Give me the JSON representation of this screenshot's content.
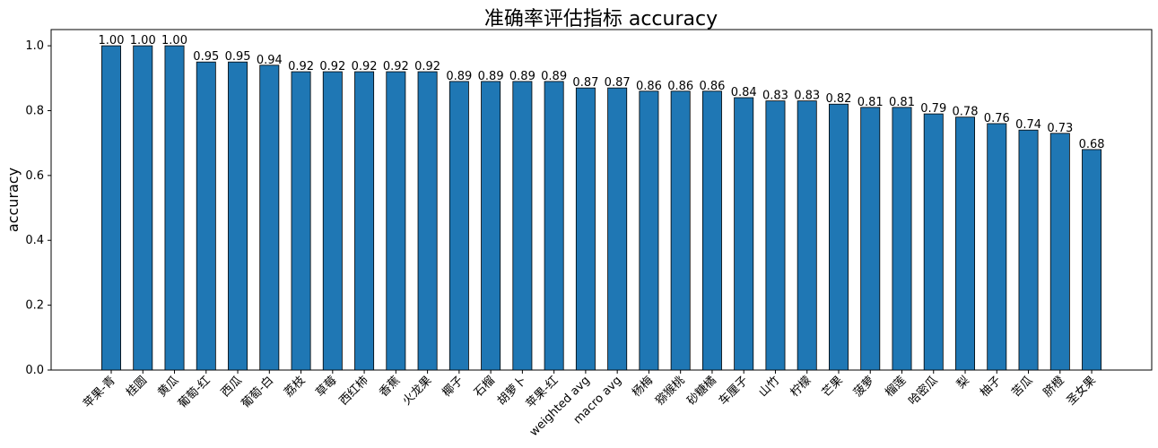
{
  "chart_data": {
    "type": "bar",
    "title": "准确率评估指标 accuracy",
    "y_label": "accuracy",
    "categories": [
      "苹果-青",
      "桂圆",
      "黄瓜",
      "葡萄-红",
      "西瓜",
      "葡萄-白",
      "荔枝",
      "草莓",
      "西红柿",
      "香蕉",
      "火龙果",
      "椰子",
      "石榴",
      "胡萝卜",
      "苹果-红",
      "weighted avg",
      "macro avg",
      "杨梅",
      "猕猴桃",
      "砂糖橘",
      "车厘子",
      "山竹",
      "柠檬",
      "芒果",
      "菠萝",
      "榴莲",
      "哈密瓜",
      "梨",
      "柚子",
      "苦瓜",
      "脐橙",
      "圣女果"
    ],
    "values": [
      1,
      1,
      1,
      0.95,
      0.95,
      0.94,
      0.92,
      0.92,
      0.92,
      0.92,
      0.92,
      0.89,
      0.89,
      0.89,
      0.89,
      0.87,
      0.87,
      0.86,
      0.86,
      0.86,
      0.84,
      0.83,
      0.83,
      0.82,
      0.81,
      0.81,
      0.79,
      0.78,
      0.76,
      0.74,
      0.73,
      0.68
    ],
    "value_labels": [
      "1.00",
      "1.00",
      "1.00",
      "0.95",
      "0.95",
      "0.94",
      "0.92",
      "0.92",
      "0.92",
      "0.92",
      "0.92",
      "0.89",
      "0.89",
      "0.89",
      "0.89",
      "0.87",
      "0.87",
      "0.86",
      "0.86",
      "0.86",
      "0.84",
      "0.83",
      "0.83",
      "0.82",
      "0.81",
      "0.81",
      "0.79",
      "0.78",
      "0.76",
      "0.74",
      "0.73",
      "0.68"
    ],
    "color": "#1f77b4",
    "ylim": [
      0,
      1.05
    ],
    "yticks": [
      {
        "value": 0,
        "label": "0.0"
      },
      {
        "value": 0.2,
        "label": "0.2"
      },
      {
        "value": 0.4,
        "label": "0.4"
      },
      {
        "value": 0.6,
        "label": "0.6"
      },
      {
        "value": 0.8,
        "label": "0.8"
      },
      {
        "value": 1,
        "label": "1.0"
      }
    ],
    "grid": false
  }
}
